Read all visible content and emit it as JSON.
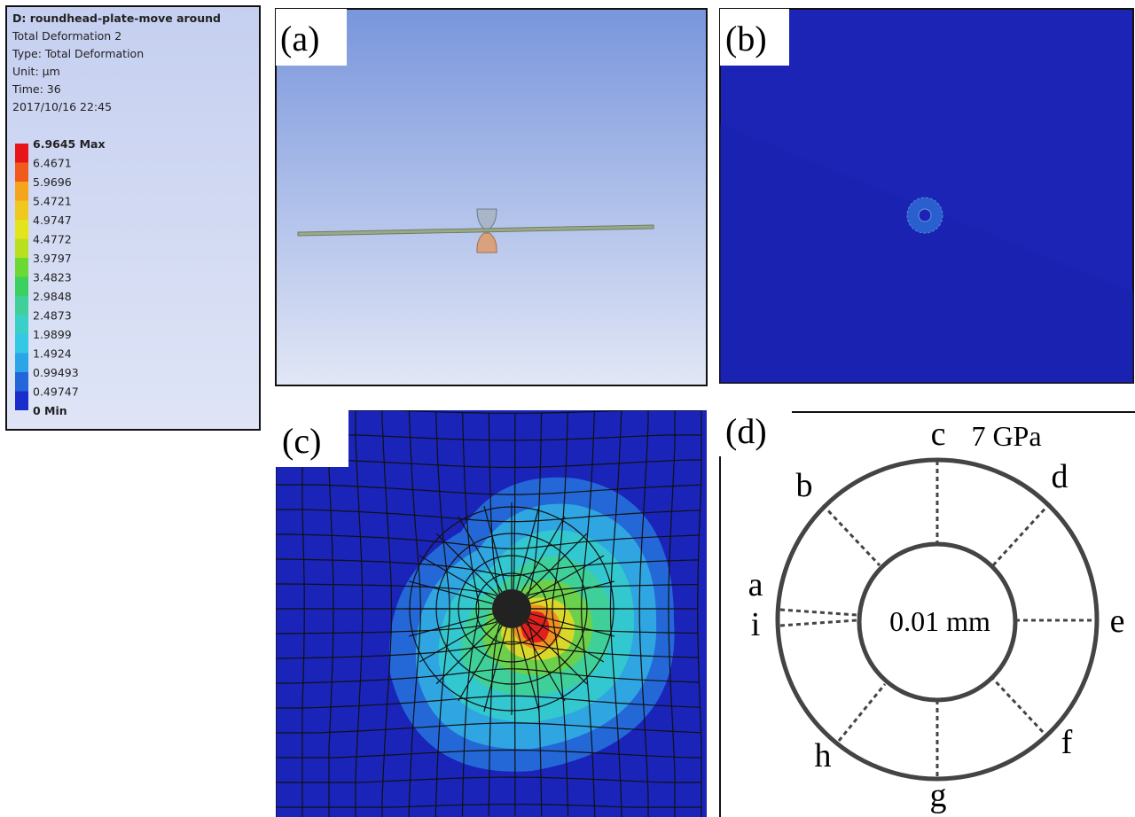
{
  "legend": {
    "header": [
      "D: roundhead-plate-move around",
      "Total Deformation 2",
      "Type: Total Deformation",
      "Unit: μm",
      "Time: 36",
      "2017/10/16 22:45"
    ],
    "levels": [
      "6.9645 Max",
      "6.4671",
      "5.9696",
      "5.4721",
      "4.9747",
      "4.4772",
      "3.9797",
      "3.4823",
      "2.9848",
      "2.4873",
      "1.9899",
      "1.4924",
      "0.99493",
      "0.49747",
      "0 Min"
    ]
  },
  "panels": {
    "a": "(a)",
    "b": "(b)",
    "c": "(c)",
    "d": "(d)"
  },
  "diagram": {
    "pressure": "7 GPa",
    "inner_label": "0.01 mm",
    "points": [
      "a",
      "b",
      "c",
      "d",
      "e",
      "f",
      "g",
      "h",
      "i"
    ]
  }
}
